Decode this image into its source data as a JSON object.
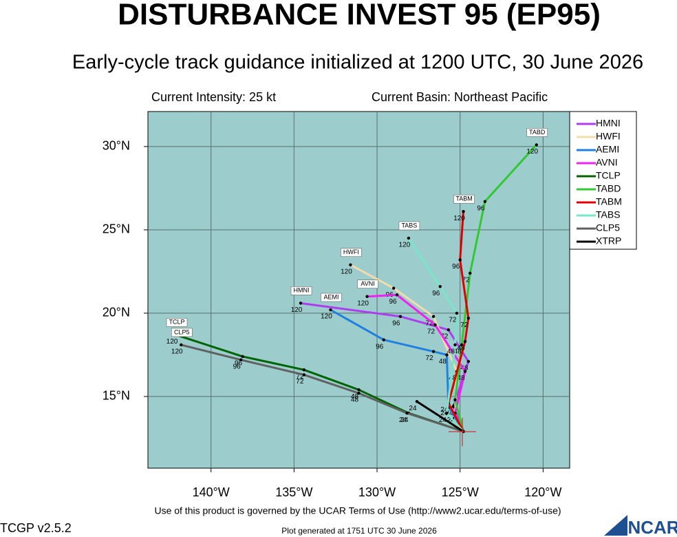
{
  "chart_data": {
    "type": "line",
    "title": "DISTURBANCE INVEST 95 (EP95)",
    "subtitle": "Early-cycle track guidance initialized at 1200 UTC, 30 June 2026",
    "intensity": "Current Intensity: 25 kt",
    "basin": "Current Basin: Northeast Pacific",
    "xlim": [
      -143.8,
      -118.4
    ],
    "ylim": [
      10.7,
      32.1
    ],
    "xticks": [
      {
        "value": -140,
        "label": "140°W"
      },
      {
        "value": -135,
        "label": "135°W"
      },
      {
        "value": -130,
        "label": "130°W"
      },
      {
        "value": -125,
        "label": "125°W"
      },
      {
        "value": -120,
        "label": "120°W"
      }
    ],
    "yticks": [
      {
        "value": 15,
        "label": "15°N"
      },
      {
        "value": 20,
        "label": "20°N"
      },
      {
        "value": 25,
        "label": "25°N"
      },
      {
        "value": 30,
        "label": "30°N"
      }
    ],
    "grid": true,
    "legend": "right",
    "series": [
      {
        "name": "HMNI",
        "color": "#b03cf0",
        "x": [
          -124.8,
          -125.4,
          -124.5,
          -125.7,
          -128.6,
          -134.6
        ],
        "y": [
          12.9,
          14.4,
          17.1,
          19.0,
          19.8,
          20.6
        ],
        "hours": [
          null,
          24,
          48,
          72,
          96,
          120
        ]
      },
      {
        "name": "HWFI",
        "color": "#f2dcae",
        "x": [
          -124.8,
          -125.3,
          -125.2,
          -126.6,
          -129.0,
          -131.6
        ],
        "y": [
          12.9,
          14.0,
          16.5,
          19.8,
          21.5,
          22.9
        ],
        "hours": [
          null,
          24,
          48,
          72,
          96,
          120
        ]
      },
      {
        "name": "AEMI",
        "color": "#2080e0",
        "x": [
          -124.8,
          -125.7,
          -125.8,
          -126.6,
          -129.6,
          -132.8
        ],
        "y": [
          12.9,
          14.4,
          17.5,
          17.7,
          18.4,
          20.2
        ],
        "hours": [
          null,
          24,
          48,
          72,
          96,
          120
        ]
      },
      {
        "name": "AVNI",
        "color": "#f020f0",
        "x": [
          -124.8,
          -125.3,
          -124.7,
          -126.5,
          -128.8,
          -130.6
        ],
        "y": [
          12.9,
          14.0,
          16.5,
          19.3,
          21.1,
          21.0
        ],
        "hours": [
          null,
          24,
          48,
          72,
          96,
          120
        ]
      },
      {
        "name": "TCLP",
        "color": "#006400",
        "x": [
          -124.8,
          -128.1,
          -131.1,
          -134.4,
          -138.1,
          -142.1
        ],
        "y": [
          12.9,
          14.0,
          15.4,
          16.6,
          17.4,
          18.7
        ],
        "hours": [
          null,
          24,
          48,
          72,
          96,
          120
        ]
      },
      {
        "name": "TABD",
        "color": "#32c832",
        "x": [
          -124.8,
          -125.3,
          -124.9,
          -124.4,
          -123.5,
          -120.4
        ],
        "y": [
          12.9,
          14.8,
          18.1,
          22.4,
          26.7,
          30.1
        ],
        "hours": [
          null,
          24,
          48,
          72,
          96,
          120
        ]
      },
      {
        "name": "TABM",
        "color": "#e00000",
        "x": [
          -124.8,
          -125.7,
          -124.7,
          -124.5,
          -125.0,
          -124.8
        ],
        "y": [
          12.9,
          14.6,
          18.3,
          19.7,
          23.2,
          26.1
        ],
        "hours": [
          null,
          24,
          48,
          72,
          96,
          120
        ]
      },
      {
        "name": "TABS",
        "color": "#78e6c8",
        "x": [
          -124.8,
          -125.8,
          -125.3,
          -125.2,
          -126.2,
          -128.1
        ],
        "y": [
          12.9,
          14.0,
          18.1,
          20.0,
          21.6,
          24.5
        ],
        "hours": [
          null,
          24,
          48,
          72,
          96,
          120
        ]
      },
      {
        "name": "CLP5",
        "color": "#606060",
        "x": [
          -124.8,
          -128.2,
          -131.1,
          -134.4,
          -138.2,
          -141.8
        ],
        "y": [
          12.9,
          14.0,
          15.2,
          16.3,
          17.2,
          18.1
        ],
        "hours": [
          null,
          24,
          48,
          72,
          96,
          120
        ]
      },
      {
        "name": "XTRP",
        "color": "#000000",
        "x": [
          -124.8,
          -127.6
        ],
        "y": [
          12.9,
          14.7
        ],
        "hours": [
          null,
          24
        ]
      }
    ],
    "terms": "Use of this product is governed by the UCAR Terms of Use (http://www2.ucar.edu/terms-of-use)",
    "version": "TCGP v2.5.2",
    "generated": "Plot generated at 1751 UTC   30 June 2026",
    "logo": "NCAR"
  }
}
